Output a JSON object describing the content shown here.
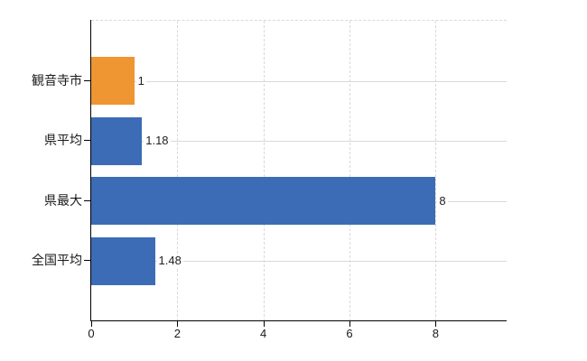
{
  "chart_data": {
    "type": "bar",
    "orientation": "horizontal",
    "title": "",
    "xlabel": "",
    "ylabel": "",
    "categories": [
      "観音寺市",
      "県平均",
      "県最大",
      "全国平均"
    ],
    "values": [
      1,
      1.18,
      8,
      1.48
    ],
    "value_labels": [
      "1",
      "1.18",
      "8",
      "1.48"
    ],
    "series": [
      {
        "name": "",
        "values": [
          1,
          1.18,
          8,
          1.48
        ]
      }
    ],
    "bar_colors": [
      "#EF9532",
      "#3C6CB5",
      "#3C6CB5",
      "#3C6CB5"
    ],
    "x_ticks": [
      0,
      2,
      4,
      6,
      8
    ],
    "x_tick_labels": [
      "0",
      "2",
      "4",
      "6",
      "8"
    ],
    "xlim": [
      0,
      9.65
    ],
    "grid": true,
    "legend": false
  },
  "style": {
    "background_color": "#ffffff",
    "grid_color": "#d9d9d9",
    "axis_color": "#000000",
    "category_label_color": "#1a1a1a",
    "value_label_color": "#222222",
    "accent_orange": "#EF9532",
    "accent_blue": "#3C6CB5"
  }
}
